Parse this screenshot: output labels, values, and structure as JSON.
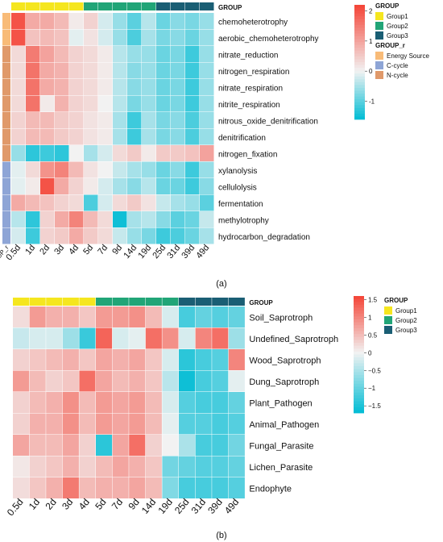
{
  "chart_data": [
    {
      "type": "heatmap",
      "panel_label": "(a)",
      "columns": [
        "0.5d",
        "1d",
        "2d",
        "3d",
        "4d",
        "5d",
        "7d",
        "9d",
        "14d",
        "19d",
        "25d",
        "31d",
        "39d",
        "49d"
      ],
      "column_groups": [
        "Group1",
        "Group1",
        "Group1",
        "Group1",
        "Group1",
        "Group2",
        "Group2",
        "Group2",
        "Group2",
        "Group2",
        "Group3",
        "Group3",
        "Group3",
        "Group3"
      ],
      "column_annotation_label": "GROUP",
      "row_annotation_label": "GROUP_r",
      "rows": [
        "chemoheterotrophy",
        "aerobic_chemoheterotrophy",
        "nitrate_reduction",
        "nitrogen_respiration",
        "nitrate_respiration",
        "nitrite_respiration",
        "nitrous_oxide_denitrification",
        "denitrification",
        "nitrogen_fixation",
        "xylanolysis",
        "cellulolysis",
        "fermentation",
        "methylotrophy",
        "hydrocarbon_degradation"
      ],
      "row_groups": [
        "Energy Source",
        "Energy Source",
        "N-cycle",
        "N-cycle",
        "N-cycle",
        "N-cycle",
        "N-cycle",
        "N-cycle",
        "N-cycle",
        "C-cycle",
        "C-cycle",
        "C-cycle",
        "C-cycle",
        "C-cycle"
      ],
      "values": [
        [
          2.0,
          0.9,
          0.9,
          0.7,
          0.1,
          0.4,
          -0.2,
          -0.6,
          -1.0,
          -0.4,
          -0.9,
          -0.7,
          -0.8,
          -0.6
        ],
        [
          2.0,
          0.6,
          0.7,
          0.6,
          -0.1,
          0.2,
          -0.2,
          -0.6,
          -1.1,
          -0.5,
          -0.8,
          -0.7,
          -0.9,
          -0.6
        ],
        [
          0.3,
          1.5,
          1.0,
          0.7,
          0.4,
          0.3,
          0.1,
          -0.4,
          -0.6,
          -0.6,
          -0.9,
          -0.8,
          -1.2,
          -0.6
        ],
        [
          0.3,
          1.6,
          0.9,
          0.8,
          0.4,
          0.3,
          0.1,
          -0.4,
          -0.7,
          -0.6,
          -0.9,
          -0.8,
          -1.2,
          -0.6
        ],
        [
          0.3,
          1.6,
          0.9,
          0.8,
          0.4,
          0.3,
          0.1,
          -0.4,
          -0.7,
          -0.6,
          -0.9,
          -0.8,
          -1.2,
          -0.6
        ],
        [
          0.3,
          1.6,
          0.1,
          0.8,
          0.4,
          0.3,
          0.0,
          -0.4,
          -0.8,
          -0.6,
          -0.9,
          -0.8,
          -1.2,
          -0.6
        ],
        [
          0.4,
          0.7,
          0.7,
          0.5,
          0.4,
          0.2,
          0.1,
          -0.5,
          -1.2,
          -0.5,
          -0.8,
          -0.7,
          -1.1,
          -0.6
        ],
        [
          0.4,
          0.7,
          0.7,
          0.5,
          0.4,
          0.2,
          0.1,
          -0.5,
          -1.2,
          -0.5,
          -0.8,
          -0.7,
          -1.1,
          -0.6
        ],
        [
          -0.6,
          -1.3,
          -1.2,
          -1.3,
          0.0,
          -0.5,
          -0.2,
          0.3,
          0.5,
          0.1,
          0.5,
          0.5,
          0.6,
          1.0
        ],
        [
          -0.1,
          0.3,
          1.2,
          1.4,
          0.7,
          0.2,
          0.0,
          -0.3,
          -0.5,
          -0.6,
          -0.9,
          -0.7,
          -1.2,
          -0.6
        ],
        [
          -0.1,
          0.1,
          2.0,
          0.9,
          0.4,
          0.1,
          -0.2,
          -0.5,
          -0.7,
          -0.4,
          -0.9,
          -0.9,
          -1.2,
          -0.7
        ],
        [
          0.9,
          0.7,
          0.6,
          0.4,
          0.3,
          -1.1,
          -0.2,
          0.3,
          0.5,
          0.2,
          -0.3,
          -0.5,
          -0.6,
          -1.0
        ],
        [
          -0.4,
          -1.3,
          0.4,
          0.9,
          1.4,
          0.7,
          0.3,
          -1.5,
          -0.5,
          -0.4,
          -0.7,
          -1.0,
          -0.9,
          -0.3
        ],
        [
          -0.2,
          -1.2,
          0.4,
          0.5,
          0.9,
          0.5,
          0.3,
          -0.3,
          -0.6,
          -0.8,
          -1.2,
          -1.1,
          -0.9,
          -0.5
        ]
      ],
      "legend": {
        "scale_ticks": [
          "2",
          "1",
          "0",
          "-1"
        ],
        "scale_min": -1.6,
        "scale_max": 2.2,
        "group_title": "GROUP",
        "groups": [
          {
            "name": "Group1",
            "color": "#f5e61f"
          },
          {
            "name": "Group2",
            "color": "#21a577"
          },
          {
            "name": "Group3",
            "color": "#1a5e74"
          }
        ],
        "group_r_title": "GROUP_r",
        "group_r": [
          {
            "name": "Energy Source",
            "color": "#f8bb78"
          },
          {
            "name": "C-cycle",
            "color": "#8ea5d6"
          },
          {
            "name": "N-cycle",
            "color": "#e0996a"
          }
        ]
      }
    },
    {
      "type": "heatmap",
      "panel_label": "(b)",
      "columns": [
        "0.5d",
        "1d",
        "2d",
        "3d",
        "4d",
        "5d",
        "7d",
        "9d",
        "14d",
        "19d",
        "25d",
        "31d",
        "39d",
        "49d"
      ],
      "column_groups": [
        "Group1",
        "Group1",
        "Group1",
        "Group1",
        "Group1",
        "Group2",
        "Group2",
        "Group2",
        "Group2",
        "Group2",
        "Group3",
        "Group3",
        "Group3",
        "Group3"
      ],
      "column_annotation_label": "GROUP",
      "rows": [
        "Soil_Saprotroph",
        "Undefined_Saprotroph",
        "Wood_Saprotroph",
        "Dung_Saprotroph",
        "Plant_Pathogen",
        "Animal_Pathogen",
        "Fungal_Parasite",
        "Lichen_Parasite",
        "Endophyte"
      ],
      "values": [
        [
          0.2,
          0.8,
          0.6,
          0.6,
          0.4,
          0.8,
          0.8,
          0.9,
          0.5,
          -0.2,
          -1.2,
          -1.0,
          -1.1,
          -1.0
        ],
        [
          -0.3,
          -0.2,
          -0.2,
          -0.6,
          -1.3,
          1.3,
          -0.2,
          -0.1,
          1.2,
          0.9,
          -0.2,
          1.0,
          1.2,
          -0.6
        ],
        [
          0.3,
          0.4,
          0.5,
          0.6,
          0.4,
          0.7,
          0.6,
          0.7,
          0.4,
          -0.2,
          -1.4,
          -1.2,
          -1.1,
          1.0
        ],
        [
          0.8,
          0.5,
          0.3,
          0.4,
          1.2,
          0.7,
          0.5,
          0.6,
          0.4,
          -0.4,
          -1.6,
          -1.2,
          -1.1,
          -0.1
        ],
        [
          0.3,
          0.5,
          0.6,
          0.9,
          0.5,
          0.8,
          0.7,
          0.8,
          0.5,
          -0.2,
          -1.1,
          -1.2,
          -1.2,
          -1.0
        ],
        [
          0.3,
          0.6,
          0.6,
          0.9,
          0.5,
          0.8,
          0.7,
          0.8,
          0.5,
          -0.1,
          -1.1,
          -1.1,
          -1.2,
          -1.1
        ],
        [
          0.7,
          0.5,
          0.5,
          0.7,
          0.3,
          -1.4,
          0.7,
          1.2,
          0.3,
          0.0,
          -0.5,
          -1.2,
          -1.2,
          -0.9
        ],
        [
          0.1,
          0.3,
          0.4,
          0.6,
          0.3,
          0.5,
          0.7,
          0.6,
          0.4,
          -0.9,
          -1.0,
          -1.1,
          -1.1,
          -1.0
        ],
        [
          0.2,
          0.4,
          0.6,
          1.1,
          0.5,
          0.6,
          0.6,
          0.7,
          0.5,
          -0.8,
          -1.2,
          -1.2,
          -1.2,
          -1.1
        ]
      ],
      "legend": {
        "scale_ticks": [
          "1.5",
          "1",
          "0.5",
          "0",
          "−0.5",
          "−1",
          "−1.5"
        ],
        "scale_min": -1.7,
        "scale_max": 1.6,
        "group_title": "GROUP",
        "groups": [
          {
            "name": "Group1",
            "color": "#f5e61f"
          },
          {
            "name": "Group2",
            "color": "#21a577"
          },
          {
            "name": "Group3",
            "color": "#1a5e74"
          }
        ]
      }
    }
  ]
}
